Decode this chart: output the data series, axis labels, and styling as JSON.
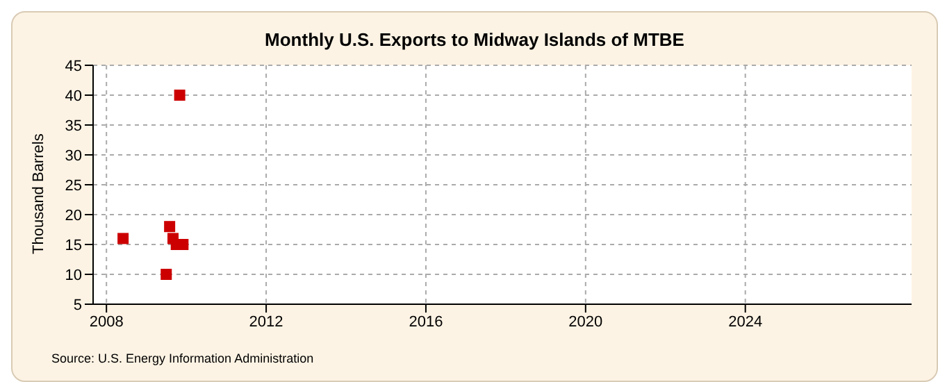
{
  "chart_data": {
    "type": "scatter",
    "title": "Monthly U.S. Exports to Midway Islands of MTBE",
    "ylabel": "Thousand Barrels",
    "annotations": [
      "Source: U.S. Energy Information Administration"
    ],
    "x": [
      "2008-06",
      "2009-07",
      "2009-08",
      "2009-09",
      "2009-10",
      "2009-11",
      "2009-12"
    ],
    "series": [
      {
        "color": "#cc0000",
        "values": [
          16,
          10,
          18,
          16,
          15,
          40,
          15
        ]
      }
    ],
    "xlim": [
      "2007-09",
      "2028-03"
    ],
    "xticks": [
      {
        "value": "2008",
        "label": "2008"
      },
      {
        "value": "2012",
        "label": "2012"
      },
      {
        "value": "2016",
        "label": "2016"
      },
      {
        "value": "2020",
        "label": "2020"
      },
      {
        "value": "2024",
        "label": "2024"
      }
    ],
    "ylim": [
      5,
      45
    ],
    "yticks": [
      5,
      10,
      15,
      20,
      25,
      30,
      35,
      40,
      45
    ],
    "grid": true,
    "marker": "square",
    "legend": false
  }
}
